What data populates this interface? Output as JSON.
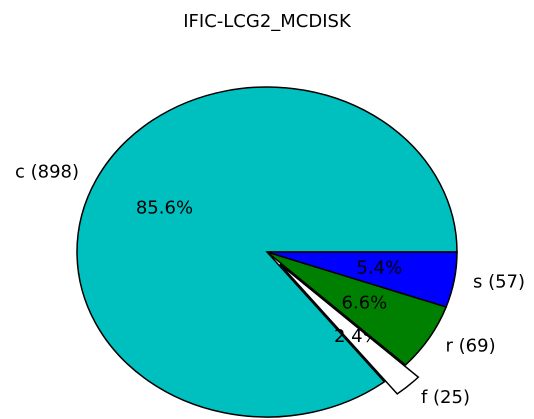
{
  "chart_data": {
    "type": "pie",
    "title": "IFIC-LCG2_MCDISK",
    "categories": [
      "c (898)",
      "f (25)",
      "r (69)",
      "s (57)"
    ],
    "values": [
      85.6,
      2.4,
      6.6,
      5.4
    ],
    "value_labels": [
      "85.6%",
      "2.4%",
      "6.6%",
      "5.4%"
    ],
    "colors": [
      "#00bfbf",
      "#ffffff",
      "#008000",
      "#0000ff"
    ],
    "explode": [
      0,
      0.1,
      0,
      0
    ]
  }
}
